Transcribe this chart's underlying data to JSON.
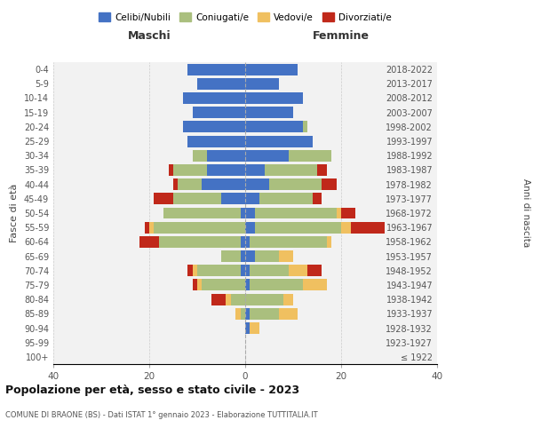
{
  "age_groups": [
    "100+",
    "95-99",
    "90-94",
    "85-89",
    "80-84",
    "75-79",
    "70-74",
    "65-69",
    "60-64",
    "55-59",
    "50-54",
    "45-49",
    "40-44",
    "35-39",
    "30-34",
    "25-29",
    "20-24",
    "15-19",
    "10-14",
    "5-9",
    "0-4"
  ],
  "birth_years": [
    "≤ 1922",
    "1923-1927",
    "1928-1932",
    "1933-1937",
    "1938-1942",
    "1943-1947",
    "1948-1952",
    "1953-1957",
    "1958-1962",
    "1963-1967",
    "1968-1972",
    "1973-1977",
    "1978-1982",
    "1983-1987",
    "1988-1992",
    "1993-1997",
    "1998-2002",
    "2003-2007",
    "2008-2012",
    "2013-2017",
    "2018-2022"
  ],
  "colors": {
    "celibi": "#4472C4",
    "coniugati": "#AABF7E",
    "vedovi": "#F0C060",
    "divorziati": "#C0281A"
  },
  "maschi": {
    "celibi": [
      0,
      0,
      0,
      0,
      0,
      0,
      1,
      1,
      1,
      0,
      1,
      5,
      9,
      8,
      8,
      12,
      13,
      11,
      13,
      10,
      12
    ],
    "coniugati": [
      0,
      0,
      0,
      1,
      3,
      9,
      9,
      4,
      17,
      19,
      16,
      10,
      5,
      7,
      3,
      0,
      0,
      0,
      0,
      0,
      0
    ],
    "vedovi": [
      0,
      0,
      0,
      1,
      1,
      1,
      1,
      0,
      0,
      1,
      0,
      0,
      0,
      0,
      0,
      0,
      0,
      0,
      0,
      0,
      0
    ],
    "divorziati": [
      0,
      0,
      0,
      0,
      3,
      1,
      1,
      0,
      4,
      1,
      0,
      4,
      1,
      1,
      0,
      0,
      0,
      0,
      0,
      0,
      0
    ]
  },
  "femmine": {
    "celibi": [
      0,
      0,
      1,
      1,
      0,
      1,
      1,
      2,
      1,
      2,
      2,
      3,
      5,
      4,
      9,
      14,
      12,
      10,
      12,
      7,
      11
    ],
    "coniugati": [
      0,
      0,
      0,
      6,
      8,
      11,
      8,
      5,
      16,
      18,
      17,
      11,
      11,
      11,
      9,
      0,
      1,
      0,
      0,
      0,
      0
    ],
    "vedovi": [
      0,
      0,
      2,
      4,
      2,
      5,
      4,
      3,
      1,
      2,
      1,
      0,
      0,
      0,
      0,
      0,
      0,
      0,
      0,
      0,
      0
    ],
    "divorziati": [
      0,
      0,
      0,
      0,
      0,
      0,
      3,
      0,
      0,
      7,
      3,
      2,
      3,
      2,
      0,
      0,
      0,
      0,
      0,
      0,
      0
    ]
  },
  "xlim": 40,
  "title": "Popolazione per età, sesso e stato civile - 2023",
  "subtitle": "COMUNE DI BRAONE (BS) - Dati ISTAT 1° gennaio 2023 - Elaborazione TUTTITALIA.IT",
  "xlabel_left": "Maschi",
  "xlabel_right": "Femmine",
  "ylabel": "Fasce di età",
  "ylabel_right": "Anni di nascita",
  "legend_labels": [
    "Celibi/Nubili",
    "Coniugati/e",
    "Vedovi/e",
    "Divorziati/e"
  ],
  "background_color": "#ffffff",
  "grid_color": "#cccccc"
}
